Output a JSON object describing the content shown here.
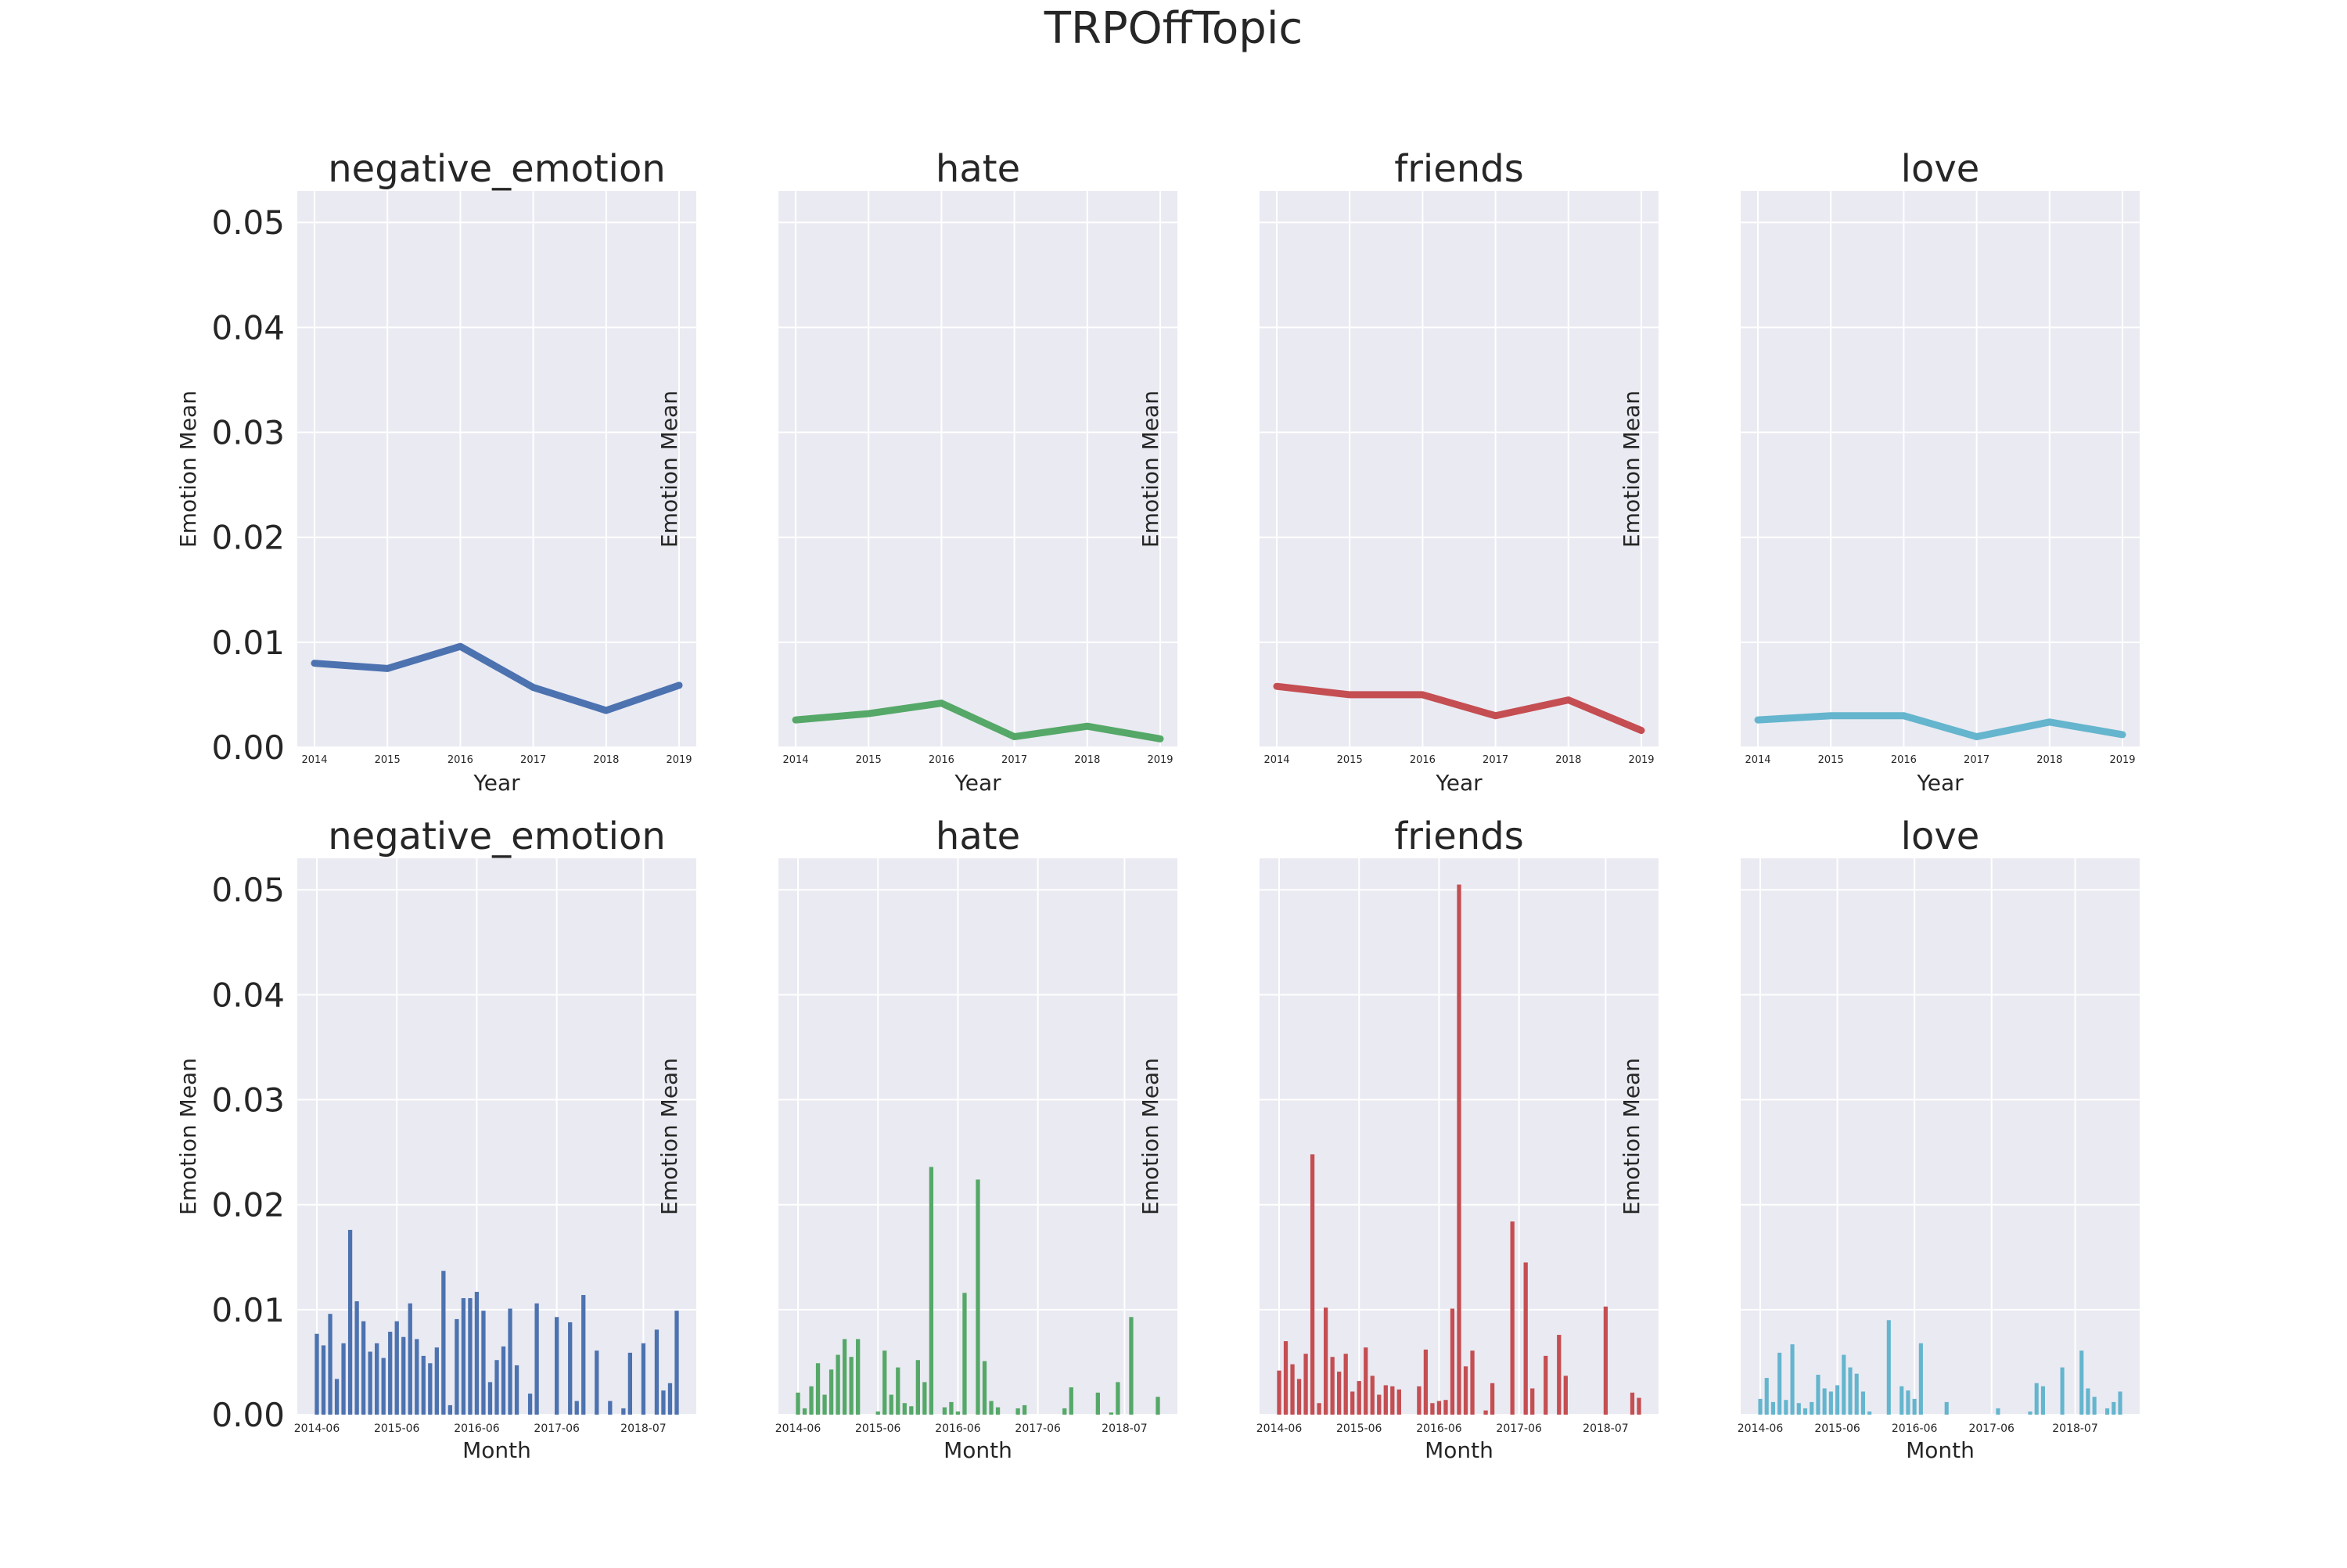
{
  "figure": {
    "title": "TRPOffTopic"
  },
  "chart_data": [
    {
      "type": "line",
      "title": "negative_emotion",
      "xlabel": "Year",
      "ylabel": "Emotion Mean",
      "x": [
        "2014",
        "2015",
        "2016",
        "2017",
        "2018",
        "2019"
      ],
      "y": [
        0.008,
        0.0075,
        0.0096,
        0.0057,
        0.0035,
        0.0059
      ],
      "ylim": [
        0,
        0.053
      ],
      "yticks": [
        "0.00",
        "0.01",
        "0.02",
        "0.03",
        "0.04",
        "0.05"
      ],
      "color": "#4c72b0",
      "grid": true
    },
    {
      "type": "line",
      "title": "hate",
      "xlabel": "Year",
      "ylabel": "Emotion Mean",
      "x": [
        "2014",
        "2015",
        "2016",
        "2017",
        "2018",
        "2019"
      ],
      "y": [
        0.0026,
        0.0032,
        0.0042,
        0.001,
        0.002,
        0.0008
      ],
      "ylim": [
        0,
        0.053
      ],
      "color": "#55a868",
      "grid": true
    },
    {
      "type": "line",
      "title": "friends",
      "xlabel": "Year",
      "ylabel": "Emotion Mean",
      "x": [
        "2014",
        "2015",
        "2016",
        "2017",
        "2018",
        "2019"
      ],
      "y": [
        0.0058,
        0.005,
        0.005,
        0.003,
        0.0045,
        0.0016
      ],
      "ylim": [
        0,
        0.053
      ],
      "color": "#c44e52",
      "grid": true
    },
    {
      "type": "line",
      "title": "love",
      "xlabel": "Year",
      "ylabel": "Emotion Mean",
      "x": [
        "2014",
        "2015",
        "2016",
        "2017",
        "2018",
        "2019"
      ],
      "y": [
        0.0026,
        0.003,
        0.003,
        0.001,
        0.0024,
        0.0012
      ],
      "ylim": [
        0,
        0.053
      ],
      "color": "#64b5cd",
      "grid": true
    },
    {
      "type": "bar",
      "title": "negative_emotion",
      "xlabel": "Month",
      "ylabel": "Emotion Mean",
      "ylim": [
        0,
        0.053
      ],
      "yticks": [
        "0.00",
        "0.01",
        "0.02",
        "0.03",
        "0.04",
        "0.05"
      ],
      "xticks": [
        "2014-06",
        "2015-06",
        "2016-06",
        "2017-06",
        "2018-07"
      ],
      "color": "#4c72b0",
      "grid": true,
      "values": [
        0.0077,
        0.0066,
        0.0096,
        0.0034,
        0.0068,
        0.0176,
        0.0108,
        0.0089,
        0.006,
        0.0068,
        0.0054,
        0.0079,
        0.0089,
        0.0074,
        0.0106,
        0.0072,
        0.0056,
        0.0049,
        0.0064,
        0.0137,
        0.0009,
        0.0091,
        0.0111,
        0.0111,
        0.0117,
        0.0099,
        0.0031,
        0.0052,
        0.0065,
        0.0101,
        0.0047,
        0,
        0.002,
        0.0106,
        0,
        0,
        0.0093,
        0,
        0.0088,
        0.0013,
        0.0114,
        0,
        0.0061,
        0,
        0.0013,
        0,
        0.0006,
        0.0059,
        0,
        0.0068,
        0,
        0.0081,
        0.0023,
        0.003,
        0.0099
      ]
    },
    {
      "type": "bar",
      "title": "hate",
      "xlabel": "Month",
      "ylabel": "Emotion Mean",
      "ylim": [
        0,
        0.053
      ],
      "xticks": [
        "2014-06",
        "2015-06",
        "2016-06",
        "2017-06",
        "2018-07"
      ],
      "color": "#55a868",
      "grid": true,
      "values": [
        0.0021,
        0.0006,
        0.0027,
        0.0049,
        0.0019,
        0.0043,
        0.0057,
        0.0072,
        0.0055,
        0.0072,
        0,
        0,
        0.0003,
        0.0061,
        0.0019,
        0.0045,
        0.0011,
        0.0008,
        0.0052,
        0.0031,
        0.0236,
        0,
        0.0007,
        0.0012,
        0.0003,
        0.0116,
        0,
        0.0224,
        0.0051,
        0.0013,
        0.0007,
        0,
        0,
        0.0006,
        0.0009,
        0,
        0,
        0,
        0,
        0,
        0.0006,
        0.0026,
        0,
        0,
        0,
        0.0021,
        0,
        0.0002,
        0.0031,
        0,
        0.0093,
        0,
        0,
        0,
        0.0017
      ]
    },
    {
      "type": "bar",
      "title": "friends",
      "xlabel": "Month",
      "ylabel": "Emotion Mean",
      "ylim": [
        0,
        0.053
      ],
      "xticks": [
        "2014-06",
        "2015-06",
        "2016-06",
        "2017-06",
        "2018-07"
      ],
      "color": "#c44e52",
      "grid": true,
      "values": [
        0.0042,
        0.007,
        0.0048,
        0.0034,
        0.0058,
        0.0248,
        0.0011,
        0.0102,
        0.0055,
        0.0041,
        0.0058,
        0.0022,
        0.0032,
        0.0064,
        0.0037,
        0.0019,
        0.0028,
        0.0027,
        0.0024,
        0,
        0,
        0.0027,
        0.0062,
        0.0011,
        0.0013,
        0.0014,
        0.0101,
        0.0505,
        0.0046,
        0.0061,
        0,
        0.0004,
        0.003,
        0,
        0,
        0.0184,
        0,
        0.0145,
        0.0025,
        0,
        0.0056,
        0,
        0.0076,
        0.0037,
        0,
        0,
        0,
        0,
        0,
        0.0103,
        0,
        0,
        0,
        0.0021,
        0.0016
      ]
    },
    {
      "type": "bar",
      "title": "love",
      "xlabel": "Month",
      "ylabel": "Emotion Mean",
      "ylim": [
        0,
        0.053
      ],
      "xticks": [
        "2014-06",
        "2015-06",
        "2016-06",
        "2017-06",
        "2018-07"
      ],
      "color": "#64b5cd",
      "grid": true,
      "values": [
        0.0015,
        0.0035,
        0.0012,
        0.0059,
        0.0014,
        0.0067,
        0.0011,
        0.0006,
        0.0012,
        0.0038,
        0.0025,
        0.0022,
        0.0028,
        0.0057,
        0.0045,
        0.0039,
        0.0022,
        0.0003,
        0,
        0,
        0.009,
        0,
        0.0027,
        0.0023,
        0.0015,
        0.0068,
        0,
        0,
        0,
        0.0012,
        0,
        0,
        0,
        0,
        0,
        0,
        0,
        0.0006,
        0,
        0,
        0,
        0,
        0.0003,
        0.003,
        0.0027,
        0,
        0,
        0.0045,
        0,
        0,
        0.0061,
        0.0025,
        0.0017,
        0,
        0.0006,
        0.0012,
        0.0022
      ]
    }
  ]
}
